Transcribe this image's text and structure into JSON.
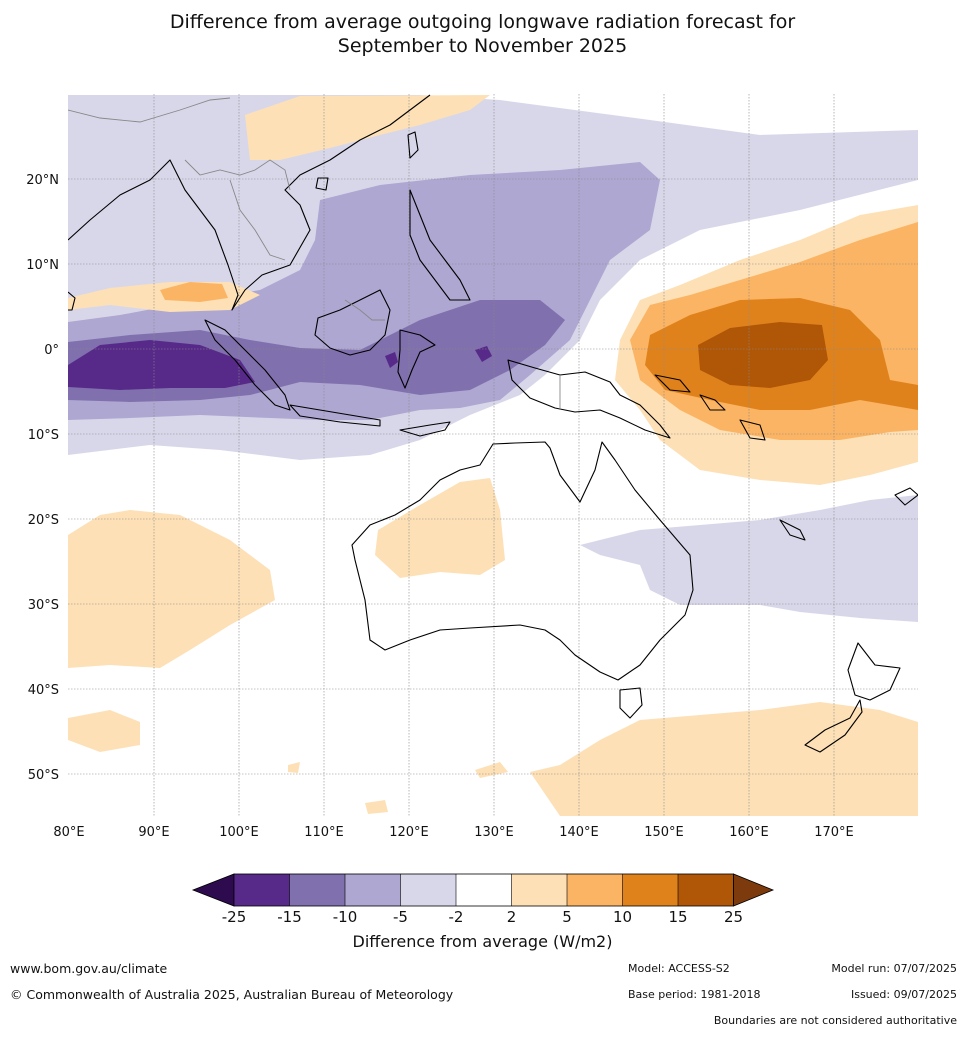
{
  "title": {
    "line1": "Difference from average outgoing longwave radiation forecast for",
    "line2": "September to November 2025"
  },
  "map": {
    "lon_labels": [
      "80°E",
      "90°E",
      "100°E",
      "110°E",
      "120°E",
      "130°E",
      "140°E",
      "150°E",
      "160°E",
      "170°E"
    ],
    "lat_labels": [
      "20°N",
      "10°N",
      "0°",
      "10°S",
      "20°S",
      "30°S",
      "40°S",
      "50°S"
    ]
  },
  "colorbar": {
    "labels": [
      "-25",
      "-15",
      "-10",
      "-5",
      "-2",
      "2",
      "5",
      "10",
      "15",
      "25"
    ],
    "colors": [
      "#2d0b4e",
      "#572a8a",
      "#8070ad",
      "#aea7d1",
      "#d8d7ea",
      "#ffffff",
      "#fde0b6",
      "#fbb463",
      "#e0821c",
      "#b05707",
      "#7c3a0d"
    ],
    "title": "Difference from average (W/m2)"
  },
  "footer": {
    "website": "www.bom.gov.au/climate",
    "copyright": "© Commonwealth of Australia 2025, Australian Bureau of Meteorology",
    "model": "Model: ACCESS-S2",
    "base_period": "Base period: 1981-2018",
    "model_run": "Model run: 07/07/2025",
    "issued": "Issued: 09/07/2025",
    "disclaimer": "Boundaries are not considered authoritative"
  }
}
